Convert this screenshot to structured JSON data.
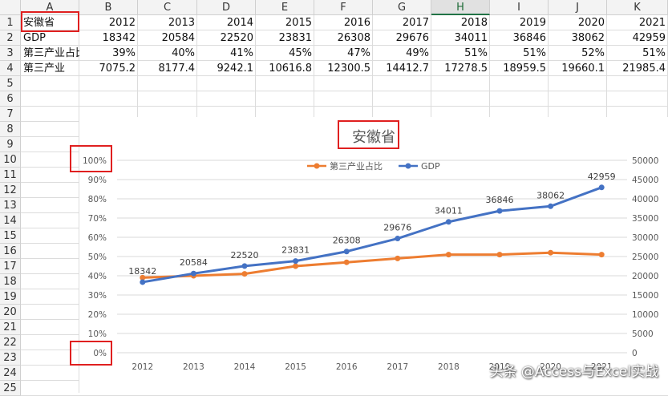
{
  "columns": [
    "A",
    "B",
    "C",
    "D",
    "E",
    "F",
    "G",
    "H",
    "I",
    "J",
    "K"
  ],
  "selected_column": "H",
  "rows": [
    "1",
    "2",
    "3",
    "4",
    "5",
    "6",
    "7",
    "8",
    "9",
    "10",
    "11",
    "12",
    "13",
    "14",
    "15",
    "16",
    "17",
    "18",
    "19",
    "20",
    "21",
    "22",
    "23",
    "24",
    "25"
  ],
  "table": [
    [
      "安徽省",
      "2012",
      "2013",
      "2014",
      "2015",
      "2016",
      "2017",
      "2018",
      "2019",
      "2020",
      "2021"
    ],
    [
      "GDP",
      "18342",
      "20584",
      "22520",
      "23831",
      "26308",
      "29676",
      "34011",
      "36846",
      "38062",
      "42959"
    ],
    [
      "第三产业占比",
      "39%",
      "40%",
      "41%",
      "45%",
      "47%",
      "49%",
      "51%",
      "51%",
      "52%",
      "51%"
    ],
    [
      "第三产业",
      "7075.2",
      "8177.4",
      "9242.1",
      "10616.8",
      "12300.5",
      "14412.7",
      "17278.5",
      "18959.5",
      "19660.1",
      "21985.4"
    ]
  ],
  "chart_data": {
    "type": "line",
    "title": "安徽省",
    "categories": [
      "2012",
      "2013",
      "2014",
      "2015",
      "2016",
      "2017",
      "2018",
      "2019",
      "2020",
      "2021"
    ],
    "legend_position": "top",
    "series": [
      {
        "name": "第三产业占比",
        "axis": "left",
        "color": "#ed7d31",
        "values": [
          0.39,
          0.4,
          0.41,
          0.45,
          0.47,
          0.49,
          0.51,
          0.51,
          0.52,
          0.51
        ]
      },
      {
        "name": "GDP",
        "axis": "right",
        "color": "#4472c4",
        "values": [
          18342,
          20584,
          22520,
          23831,
          26308,
          29676,
          34011,
          36846,
          38062,
          42959
        ],
        "data_labels": [
          "18342",
          "20584",
          "22520",
          "23831",
          "26308",
          "29676",
          "34011",
          "36846",
          "38062",
          "42959"
        ]
      }
    ],
    "y_left": {
      "range": [
        0,
        1
      ],
      "ticks": [
        "0%",
        "10%",
        "20%",
        "30%",
        "40%",
        "50%",
        "60%",
        "70%",
        "80%",
        "90%",
        "100%"
      ]
    },
    "y_right": {
      "range": [
        0,
        50000
      ],
      "ticks": [
        "0",
        "5000",
        "10000",
        "15000",
        "20000",
        "25000",
        "30000",
        "35000",
        "40000",
        "45000",
        "50000"
      ]
    },
    "grid": true
  },
  "watermark": "头条 @Access与Excel实战",
  "colors": {
    "accent_red": "#e02020",
    "header_bg": "#f3f3f3",
    "selected_header": "#217346"
  }
}
